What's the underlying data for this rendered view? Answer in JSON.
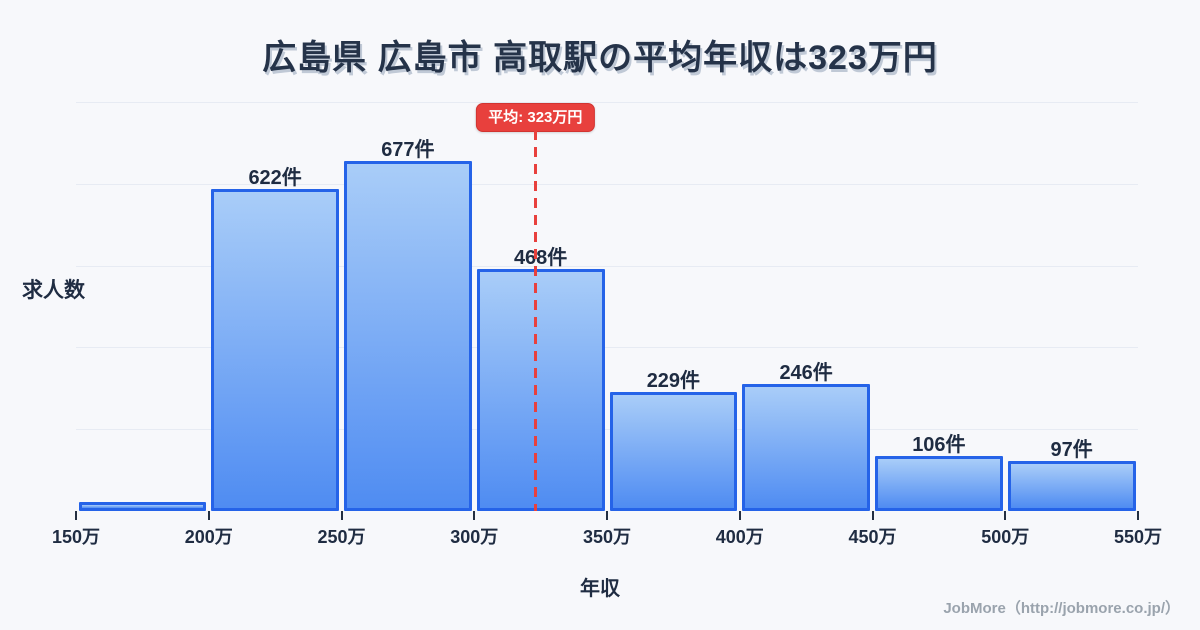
{
  "page": {
    "title": "広島県 広島市 高取駅の平均年収は323万円",
    "footer_credit": "JobMore（http://jobmore.co.jp/）"
  },
  "chart_data": {
    "type": "bar",
    "title": "広島県 広島市 高取駅の平均年収は323万円",
    "xlabel": "年収",
    "ylabel": "求人数",
    "x_tick_labels": [
      "150万",
      "200万",
      "250万",
      "300万",
      "350万",
      "400万",
      "450万",
      "500万",
      "550万"
    ],
    "x_range_man_yen": [
      150,
      550
    ],
    "bin_width_man_yen": 50,
    "values": [
      17,
      622,
      677,
      468,
      229,
      246,
      106,
      97
    ],
    "bar_labels": [
      "",
      "622件",
      "677件",
      "468件",
      "229件",
      "246件",
      "106件",
      "97件"
    ],
    "value_unit": "件",
    "ylim": [
      0,
      790
    ],
    "grid": true,
    "grid_intervals": 5,
    "legend": "none",
    "average_marker": {
      "value_man_yen": 323,
      "label": "平均: 323万円",
      "style": "dashed-vertical-line-with-badge"
    },
    "colors": {
      "background": "#f7f8fb",
      "bar_border": "#2563e8",
      "bar_fill_top": "#a9cdf8",
      "bar_fill_bottom": "#4f8cf2",
      "average_red": "#e8403d",
      "badge_text": "#ffffff",
      "title_text": "#253349",
      "axis_text": "#1f2c42",
      "footer_text": "#9aa3ad",
      "gridline": "#e7ebf3"
    }
  }
}
